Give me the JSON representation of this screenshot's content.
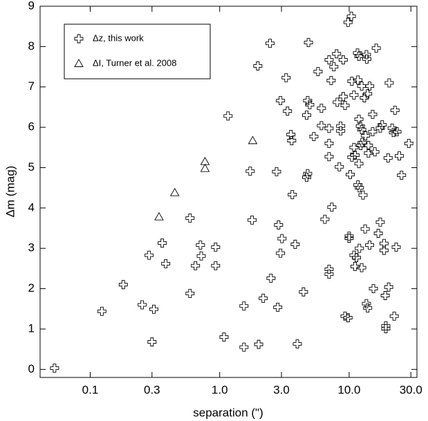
{
  "chart_data": {
    "type": "scatter",
    "xlabel": "separation (\")",
    "ylabel": "Δm (mag)",
    "xscale": "log",
    "xlim": [
      0.041,
      33.4
    ],
    "ylim": [
      -0.2,
      9
    ],
    "xticks": [
      0.1,
      0.3,
      {
        "value": 1,
        "label": "1.0"
      },
      {
        "value": 3,
        "label": "3.0"
      },
      {
        "value": 10,
        "label": "10.0"
      },
      {
        "value": 30,
        "label": "30.0"
      }
    ],
    "yticks": [
      0,
      1,
      2,
      3,
      4,
      5,
      6,
      7,
      8,
      9
    ],
    "legend": "upper left",
    "series": [
      {
        "name": "Δz, this work",
        "marker": "cross",
        "color": "#000000",
        "x": [
          0.053,
          0.123,
          0.18,
          0.252,
          0.285,
          0.31,
          0.3,
          0.36,
          0.383,
          0.59,
          0.59,
          0.65,
          0.71,
          0.72,
          0.93,
          0.93,
          1.08,
          1.16,
          1.54,
          1.54,
          1.72,
          1.78,
          1.97,
          2.0,
          2.17,
          2.45,
          2.49,
          2.75,
          2.81,
          2.85,
          2.95,
          2.95,
          3.03,
          3.26,
          3.34,
          3.55,
          3.6,
          3.64,
          3.83,
          3.98,
          4.44,
          4.7,
          4.78,
          4.85,
          4.78,
          4.96,
          4.7,
          5.34,
          5.75,
          6.11,
          6.11,
          6.5,
          7.0,
          7.0,
          7.0,
          7.0,
          7.0,
          7.0,
          7.26,
          7.35,
          7.62,
          8.0,
          8.1,
          8.4,
          8.6,
          8.6,
          9.0,
          9.0,
          9.3,
          9.3,
          9.8,
          9.8,
          10.0,
          10.0,
          10.4,
          10.2,
          10.5,
          10.5,
          10.9,
          10.9,
          11.1,
          10.9,
          11.4,
          11.1,
          11.6,
          11.9,
          11.7,
          11.9,
          11.9,
          11.7,
          12.0,
          12.0,
          12.2,
          12.5,
          12.5,
          12.6,
          12.5,
          12.8,
          12.3,
          13.1,
          13.3,
          13.6,
          13.7,
          13.4,
          13.6,
          13.9,
          13.9,
          14.1,
          14.1,
          14.4,
          14.4,
          15.2,
          15.2,
          15.4,
          15.8,
          16.2,
          16.8,
          17.4,
          17.4,
          18.0,
          18.6,
          18.6,
          19.0,
          19.2,
          19.2,
          20.0,
          20.2,
          20.4,
          21.5,
          22.0,
          22.6,
          22.3,
          23.1,
          23.4,
          24.4,
          25.4,
          28.9
        ],
        "values": [
          0.03,
          1.44,
          2.1,
          1.6,
          2.83,
          1.49,
          0.68,
          3.13,
          2.62,
          3.75,
          1.88,
          2.57,
          3.08,
          2.81,
          3.03,
          2.57,
          0.8,
          6.28,
          1.57,
          0.55,
          4.91,
          3.7,
          7.52,
          0.62,
          1.76,
          8.08,
          2.26,
          4.9,
          1.54,
          3.58,
          2.88,
          6.66,
          3.24,
          7.23,
          6.4,
          5.82,
          5.67,
          4.33,
          3.1,
          0.63,
          1.92,
          4.76,
          4.85,
          8.1,
          6.66,
          6.56,
          6.3,
          5.77,
          7.38,
          6.47,
          6.04,
          3.72,
          7.67,
          5.97,
          5.6,
          5.27,
          2.48,
          2.36,
          7.16,
          4.02,
          7.5,
          7.82,
          6.62,
          5.02,
          6.03,
          5.91,
          7.67,
          6.76,
          6.54,
          1.32,
          1.28,
          8.6,
          3.3,
          3.25,
          8.75,
          4.83,
          7.14,
          5.26,
          6.8,
          5.5,
          5.31,
          2.83,
          2.77,
          2.55,
          7.84,
          7.76,
          7.17,
          6.2,
          5.1,
          4.57,
          4.5,
          3.0,
          6.03,
          7.02,
          5.94,
          5.62,
          2.52,
          4.32,
          5.55,
          6.73,
          3.48,
          7.8,
          7.69,
          5.79,
          1.63,
          1.52,
          6.83,
          5.36,
          5.55,
          3.08,
          7.02,
          6.32,
          5.89,
          2.0,
          5.39,
          7.96,
          3.37,
          3.65,
          5.98,
          6.06,
          3.12,
          2.95,
          1.83,
          1.01,
          1.08,
          5.24,
          2.04,
          7.1,
          5.98,
          5.87,
          6.42,
          1.32,
          3.03,
          5.89,
          5.29,
          4.81,
          5.6
        ]
      },
      {
        "name": "ΔI, Turner et al. 2008",
        "marker": "triangle",
        "color": "#000000",
        "x": [
          0.34,
          0.45,
          0.77,
          0.77,
          1.8
        ],
        "values": [
          3.78,
          4.38,
          4.98,
          5.15,
          5.67
        ]
      }
    ]
  }
}
